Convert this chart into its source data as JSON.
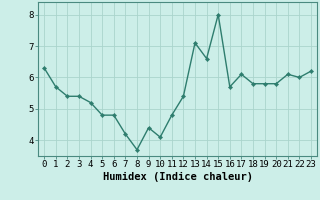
{
  "x": [
    0,
    1,
    2,
    3,
    4,
    5,
    6,
    7,
    8,
    9,
    10,
    11,
    12,
    13,
    14,
    15,
    16,
    17,
    18,
    19,
    20,
    21,
    22,
    23
  ],
  "y": [
    6.3,
    5.7,
    5.4,
    5.4,
    5.2,
    4.8,
    4.8,
    4.2,
    3.7,
    4.4,
    4.1,
    4.8,
    5.4,
    7.1,
    6.6,
    8.0,
    5.7,
    6.1,
    5.8,
    5.8,
    5.8,
    6.1,
    6.0,
    6.2
  ],
  "line_color": "#2e7d6e",
  "marker": "D",
  "marker_size": 2.2,
  "line_width": 1.0,
  "bg_color": "#cceee8",
  "grid_color": "#aad4cc",
  "xlabel": "Humidex (Indice chaleur)",
  "xlim": [
    -0.5,
    23.5
  ],
  "ylim": [
    3.5,
    8.4
  ],
  "yticks": [
    4,
    5,
    6,
    7,
    8
  ],
  "xtick_labels": [
    "0",
    "1",
    "2",
    "3",
    "4",
    "5",
    "6",
    "7",
    "8",
    "9",
    "10",
    "11",
    "12",
    "13",
    "14",
    "15",
    "16",
    "17",
    "18",
    "19",
    "20",
    "21",
    "22",
    "23"
  ],
  "xlabel_fontsize": 7.5,
  "tick_fontsize": 6.5,
  "spine_color": "#4a8a80"
}
